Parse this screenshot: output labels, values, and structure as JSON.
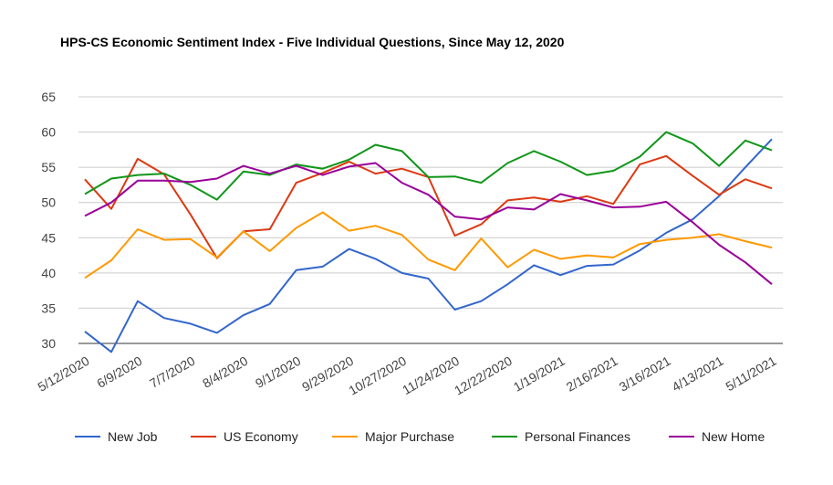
{
  "chart_data": {
    "type": "line",
    "title": "HPS-CS Economic Sentiment Index - Five Individual Questions, Since May 12, 2020",
    "xlabel": "",
    "ylabel": "",
    "ylim": [
      28,
      66
    ],
    "yticks": [
      30,
      35,
      40,
      45,
      50,
      55,
      60,
      65
    ],
    "grid": "horizontal",
    "legend_position": "bottom",
    "x_tick_labels": [
      "5/12/2020",
      "6/9/2020",
      "7/7/2020",
      "8/4/2020",
      "9/1/2020",
      "9/29/2020",
      "10/27/2020",
      "11/24/2020",
      "12/22/2020",
      "1/19/2021",
      "2/16/2021",
      "3/16/2021",
      "4/13/2021",
      "5/11/2021"
    ],
    "series": [
      {
        "name": "New Job",
        "color": "#3366cc",
        "values": [
          31.7,
          28.8,
          36.0,
          33.6,
          32.8,
          31.5,
          34.0,
          35.6,
          40.4,
          40.9,
          43.4,
          42.0,
          40.0,
          39.2,
          34.8,
          36.0,
          38.4,
          41.1,
          39.7,
          41.0,
          41.2,
          43.2,
          45.7,
          47.6,
          50.9,
          55.0,
          59.0
        ]
      },
      {
        "name": "US Economy",
        "color": "#dc3912",
        "values": [
          53.3,
          49.1,
          56.2,
          54.0,
          48.3,
          42.1,
          45.9,
          46.2,
          52.8,
          54.2,
          55.8,
          54.1,
          54.8,
          53.6,
          45.3,
          46.9,
          50.3,
          50.7,
          50.1,
          50.9,
          49.8,
          55.4,
          56.6,
          53.8,
          51.1,
          53.3,
          52.0
        ]
      },
      {
        "name": "Major Purchase",
        "color": "#ff9900",
        "values": [
          39.3,
          41.8,
          46.2,
          44.7,
          44.8,
          42.2,
          45.9,
          43.1,
          46.4,
          48.6,
          46.0,
          46.7,
          45.4,
          41.9,
          40.4,
          44.9,
          40.8,
          43.3,
          42.0,
          42.5,
          42.2,
          44.1,
          44.7,
          45.0,
          45.5,
          44.5,
          43.6
        ]
      },
      {
        "name": "Personal Finances",
        "color": "#109618",
        "values": [
          51.2,
          53.4,
          53.9,
          54.1,
          52.5,
          50.4,
          54.4,
          53.9,
          55.4,
          54.8,
          56.1,
          58.2,
          57.3,
          53.6,
          53.7,
          52.8,
          55.6,
          57.3,
          55.8,
          53.9,
          54.5,
          56.5,
          60.0,
          58.4,
          55.2,
          58.8,
          57.4
        ]
      },
      {
        "name": "New Home",
        "color": "#990099",
        "values": [
          48.1,
          50.0,
          53.1,
          53.1,
          52.9,
          53.4,
          55.2,
          54.1,
          55.2,
          53.9,
          55.1,
          55.6,
          52.8,
          51.1,
          48.0,
          47.6,
          49.3,
          49.0,
          51.2,
          50.3,
          49.3,
          49.4,
          50.1,
          47.2,
          44.0,
          41.5,
          38.4
        ]
      }
    ]
  }
}
